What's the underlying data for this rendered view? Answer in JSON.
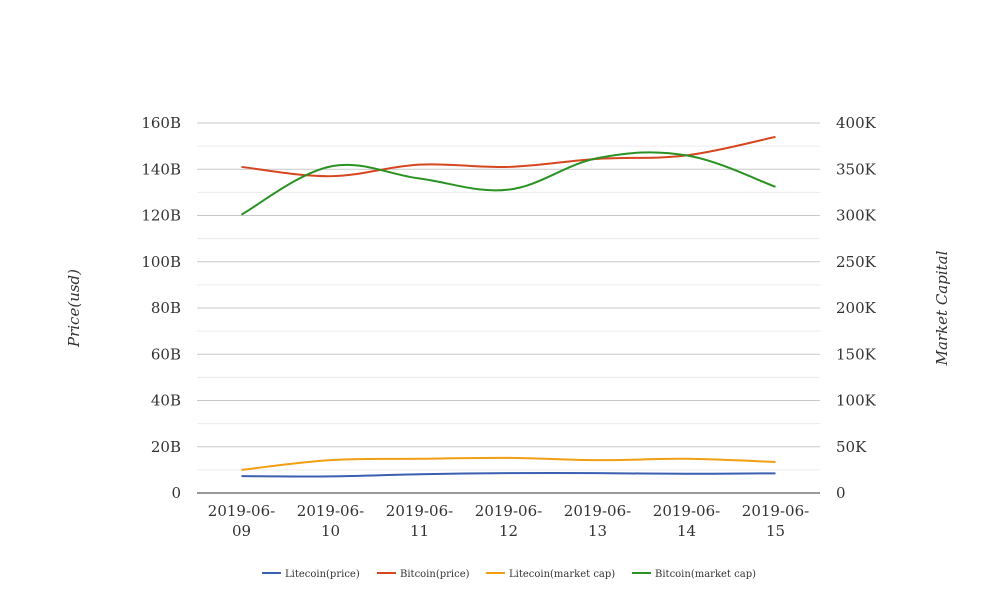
{
  "chart_data": {
    "type": "line",
    "categories": [
      "2019-06-09",
      "2019-06-10",
      "2019-06-11",
      "2019-06-12",
      "2019-06-13",
      "2019-06-14",
      "2019-06-15"
    ],
    "x_tick_labels": [
      [
        "2019-06-",
        "09"
      ],
      [
        "2019-06-",
        "10"
      ],
      [
        "2019-06-",
        "11"
      ],
      [
        "2019-06-",
        "12"
      ],
      [
        "2019-06-",
        "13"
      ],
      [
        "2019-06-",
        "14"
      ],
      [
        "2019-06-",
        "15"
      ]
    ],
    "ylabel": "Price(usd)",
    "y2label": "Market Capital",
    "ylim": [
      0,
      160000000000
    ],
    "y2lim": [
      0,
      400000
    ],
    "y_ticks": [
      0,
      20000000000,
      40000000000,
      60000000000,
      80000000000,
      100000000000,
      120000000000,
      140000000000,
      160000000000
    ],
    "y_tick_labels": [
      "0",
      "20B",
      "40B",
      "60B",
      "80B",
      "100B",
      "120B",
      "140B",
      "160B"
    ],
    "y2_ticks": [
      0,
      50000,
      100000,
      150000,
      200000,
      250000,
      300000,
      350000,
      400000
    ],
    "y2_tick_labels": [
      "0",
      "50K",
      "100K",
      "150K",
      "200K",
      "250K",
      "300K",
      "350K",
      "400K"
    ],
    "grid": true,
    "legend_position": "bottom",
    "series": [
      {
        "name": "Litecoin(price)",
        "axis": "left",
        "color": "#3a5fb0",
        "values": [
          7300000000,
          7200000000,
          8100000000,
          8600000000,
          8600000000,
          8300000000,
          8500000000
        ]
      },
      {
        "name": "Bitcoin(price)",
        "axis": "left",
        "color": "#d6461f",
        "values": [
          141000000000,
          137000000000,
          142000000000,
          141000000000,
          144500000000,
          146000000000,
          154000000000
        ]
      },
      {
        "name": "Litecoin(market cap)",
        "axis": "right",
        "color": "#f29e12",
        "values": [
          25000,
          35500,
          37000,
          38000,
          35500,
          37000,
          33500
        ]
      },
      {
        "name": "Bitcoin(market cap)",
        "axis": "right",
        "color": "#2a9223",
        "values": [
          301000,
          353000,
          340000,
          328000,
          362000,
          365000,
          331000
        ]
      }
    ]
  }
}
